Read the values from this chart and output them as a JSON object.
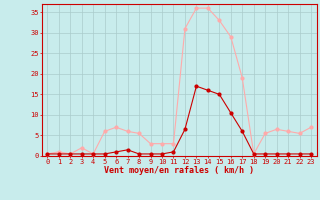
{
  "x": [
    0,
    1,
    2,
    3,
    4,
    5,
    6,
    7,
    8,
    9,
    10,
    11,
    12,
    13,
    14,
    15,
    16,
    17,
    18,
    19,
    20,
    21,
    22,
    23
  ],
  "rafales": [
    0.5,
    1,
    0.5,
    2,
    0.5,
    6,
    7,
    6,
    5.5,
    3,
    3,
    3,
    31,
    36,
    36,
    33,
    29,
    19,
    0.5,
    5.5,
    6.5,
    6,
    5.5,
    7
  ],
  "moyen": [
    0.5,
    0.5,
    0.5,
    0.5,
    0.5,
    0.5,
    1,
    1.5,
    0.5,
    0.5,
    0.5,
    1,
    6.5,
    17,
    16,
    15,
    10.5,
    6,
    0.5,
    0.5,
    0.5,
    0.5,
    0.5,
    0.5
  ],
  "color_rafales": "#ffaaaa",
  "color_moyen": "#cc0000",
  "bg_color": "#c8ecec",
  "grid_color": "#aacccc",
  "xlabel": "Vent moyen/en rafales ( km/h )",
  "ylim": [
    0,
    37
  ],
  "xlim": [
    -0.5,
    23.5
  ],
  "yticks": [
    0,
    5,
    10,
    15,
    20,
    25,
    30,
    35
  ],
  "xticks": [
    0,
    1,
    2,
    3,
    4,
    5,
    6,
    7,
    8,
    9,
    10,
    11,
    12,
    13,
    14,
    15,
    16,
    17,
    18,
    19,
    20,
    21,
    22,
    23
  ],
  "tick_fontsize": 5,
  "xlabel_fontsize": 6,
  "line_width": 0.8,
  "marker_size": 2.0
}
